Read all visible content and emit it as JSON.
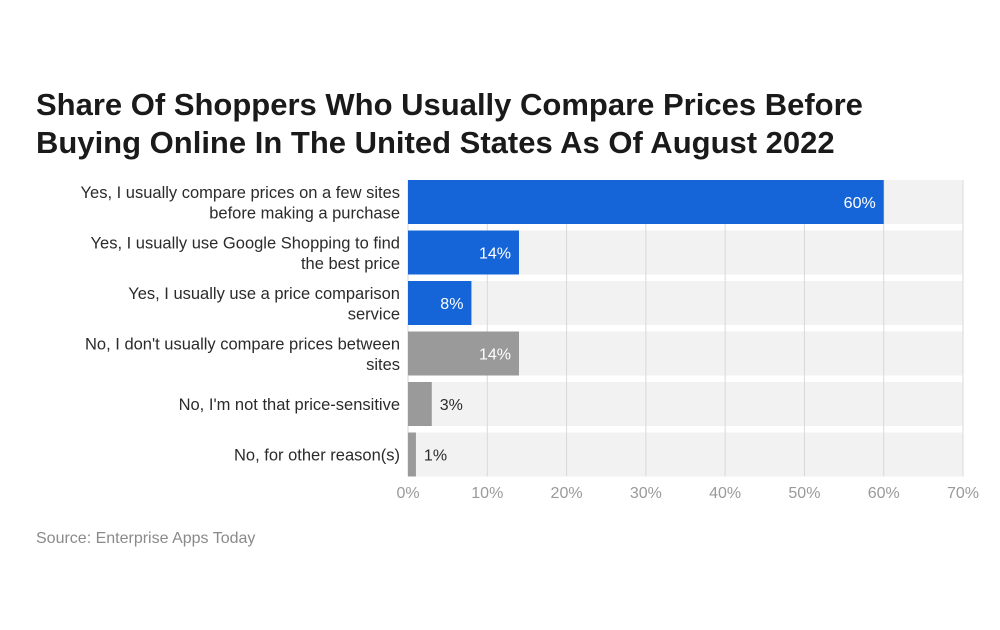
{
  "title_lines": [
    "Share Of Shoppers Who Usually Compare Prices Before",
    "Buying Online In The United States As Of August 2022"
  ],
  "source": "Source: Enterprise Apps Today",
  "colors": {
    "yes_bar": "#1565d8",
    "no_bar": "#9a9a9a",
    "track": "#f2f2f2",
    "grid": "#d9d9d9"
  },
  "chart_data": {
    "type": "bar",
    "orientation": "horizontal",
    "title": "Share Of Shoppers Who Usually Compare Prices Before Buying Online In The United States As Of August 2022",
    "categories": [
      [
        "Yes, I usually compare prices on a few sites",
        "before making a purchase"
      ],
      [
        "Yes, I usually use Google Shopping to find",
        "the best price"
      ],
      [
        "Yes, I usually use a price comparison",
        "service"
      ],
      [
        "No, I don't usually compare prices between",
        "sites"
      ],
      [
        "No, I'm not that price-sensitive"
      ],
      [
        "No, for other reason(s)"
      ]
    ],
    "values": [
      60,
      14,
      8,
      14,
      3,
      1
    ],
    "value_labels": [
      "60%",
      "14%",
      "8%",
      "14%",
      "3%",
      "1%"
    ],
    "groups": [
      "yes",
      "yes",
      "yes",
      "no",
      "no",
      "no"
    ],
    "xlim": [
      0,
      70
    ],
    "ticks": [
      0,
      10,
      20,
      30,
      40,
      50,
      60,
      70
    ],
    "tick_labels": [
      "0%",
      "10%",
      "20%",
      "30%",
      "40%",
      "50%",
      "60%",
      "70%"
    ],
    "grid": true,
    "legend": "none"
  }
}
